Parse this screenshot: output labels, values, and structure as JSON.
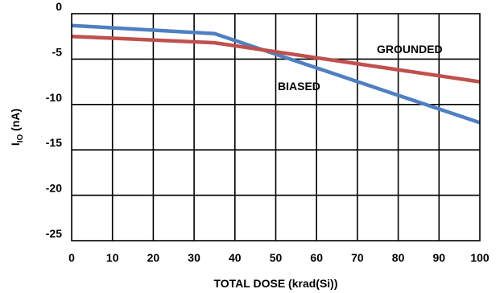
{
  "chart_data": {
    "type": "line",
    "xlabel": "TOTAL DOSE (krad(Si))",
    "ylabel_main": "I",
    "ylabel_sub": "IO",
    "ylabel_unit": " (nA)",
    "xlim": [
      0,
      100
    ],
    "ylim": [
      -25,
      0
    ],
    "x_ticks": [
      0,
      10,
      20,
      30,
      40,
      50,
      60,
      70,
      80,
      90,
      100
    ],
    "y_ticks": [
      0,
      -5,
      -10,
      -15,
      -20,
      -25
    ],
    "grid": true,
    "series": [
      {
        "name": "BIASED",
        "color": "#4f7fc1",
        "points": [
          [
            0,
            -1.3
          ],
          [
            35,
            -2.2
          ],
          [
            100,
            -12.0
          ]
        ]
      },
      {
        "name": "GROUNDED",
        "color": "#c0504d",
        "points": [
          [
            0,
            -2.5
          ],
          [
            35,
            -3.2
          ],
          [
            100,
            -7.5
          ]
        ]
      }
    ]
  }
}
